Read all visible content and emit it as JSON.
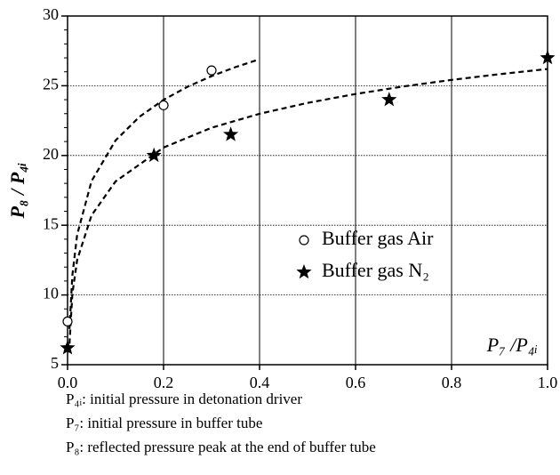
{
  "chart_data": {
    "type": "scatter",
    "xlabel": "P₇ /P₄ᵢ",
    "ylabel": "P₈ / P₄ᵢ",
    "xlim": [
      0,
      1
    ],
    "ylim": [
      5,
      30
    ],
    "xticks": [
      {
        "value": 0,
        "label": "0.0"
      },
      0.2,
      0.4,
      0.6,
      0.8,
      {
        "value": 1,
        "label": "1.0"
      }
    ],
    "yticks": [
      5,
      10,
      15,
      20,
      25,
      30
    ],
    "grid": true,
    "series": [
      {
        "name": "Buffer gas Air",
        "marker": "circle",
        "color": "#000000",
        "x": [
          0,
          0.2,
          0.3
        ],
        "values": [
          8.1,
          23.6,
          26.1
        ]
      },
      {
        "name": "Buffer gas N₂",
        "marker": "star",
        "color": "#000000",
        "x": [
          0,
          0.18,
          0.34,
          0.67,
          1.0
        ],
        "values": [
          6.2,
          20,
          21.5,
          24,
          27
        ]
      }
    ],
    "fits": [
      {
        "x": [
          0.004,
          0.01,
          0.02,
          0.05,
          0.1,
          0.15,
          0.2,
          0.25,
          0.3,
          0.35,
          0.4
        ],
        "values": [
          7.56,
          11.41,
          14.32,
          18.17,
          21.08,
          22.78,
          23.99,
          24.93,
          25.69,
          26.34,
          26.9
        ]
      },
      {
        "x": [
          0.003,
          0.01,
          0.02,
          0.05,
          0.1,
          0.2,
          0.3,
          0.4,
          0.5,
          0.6,
          0.7,
          0.8,
          0.9,
          1.0
        ],
        "values": [
          5.87,
          10.08,
          12.51,
          15.71,
          18.14,
          20.57,
          21.99,
          22.99,
          23.77,
          24.41,
          24.95,
          25.42,
          25.83,
          26.2
        ]
      }
    ],
    "notes": [
      "P₄ᵢ: initial pressure in detonation driver",
      "P₇: initial pressure in buffer tube",
      "P₈: reflected pressure peak at the end of buffer tube"
    ]
  }
}
